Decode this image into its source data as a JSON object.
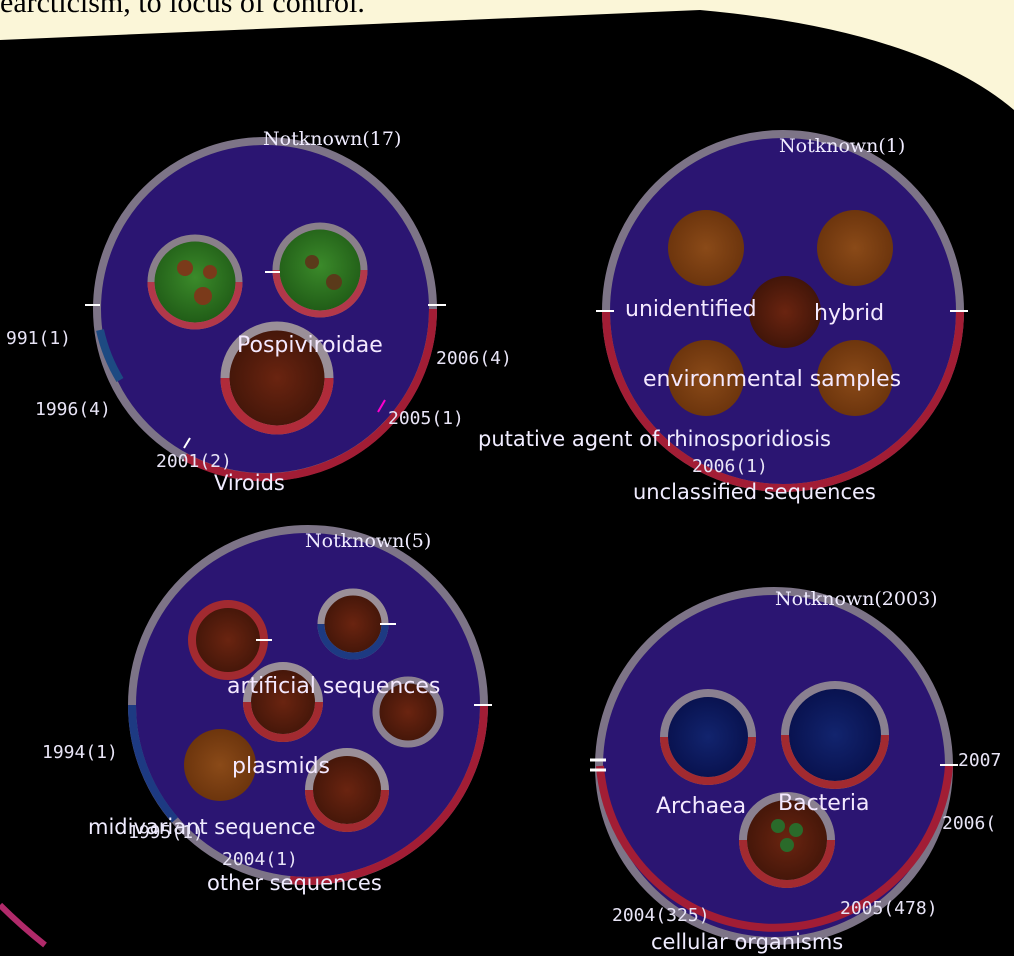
{
  "caption": "earcticism, to locus of control.",
  "colors": {
    "background": "#000000",
    "page": "#fbf6d8",
    "circle_fill": "#2b1572",
    "ring": "#7d7487",
    "ring_red": "#a21d35",
    "node_green": "#2f7a22",
    "node_brown": "#5a1f10",
    "node_orange": "#7a3e12",
    "node_blue": "#0a1860"
  },
  "clusters": [
    {
      "title": "Viroids",
      "top_label": "Notknown(17)",
      "children": [
        "Pospiviroidae"
      ],
      "years": [
        "991(1)",
        "1996(4)",
        "2001(2)",
        "2005(1)",
        "2006(4)"
      ]
    },
    {
      "title": "unclassified sequences",
      "top_label": "Notknown(1)",
      "children": [
        "unidentified",
        "hybrid",
        "environmental samples",
        "putative agent of rhinosporidiosis"
      ],
      "years": [
        "2006(1)"
      ]
    },
    {
      "title": "other sequences",
      "top_label": "Notknown(5)",
      "children": [
        "artificial sequences",
        "plasmids",
        "midivariant sequence"
      ],
      "years": [
        "1994(1)",
        "1995(1)",
        "2004(1)"
      ]
    },
    {
      "title": "cellular organisms",
      "top_label": "Notknown(2003)",
      "children": [
        "Archaea",
        "Bacteria"
      ],
      "years": [
        "2004(325)",
        "2005(478)",
        "2006(",
        "2007"
      ]
    }
  ]
}
